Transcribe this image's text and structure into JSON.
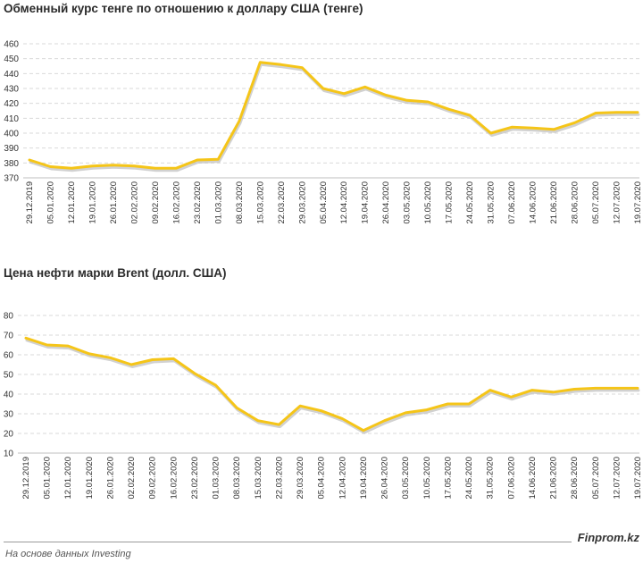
{
  "colors": {
    "line": "#F5C518",
    "line_shadow": "#bdbdbd",
    "grid": "#d9d9d9",
    "text": "#333333"
  },
  "chart_data": [
    {
      "type": "line",
      "title": "Обменный курс тенге по отношению к доллару США (тенге)",
      "ylim": [
        370,
        460
      ],
      "yticks": [
        370,
        380,
        390,
        400,
        410,
        420,
        430,
        440,
        450,
        460
      ],
      "grid": true,
      "categories": [
        "29.12.2019",
        "05.01.2020",
        "12.01.2020",
        "19.01.2020",
        "26.01.2020",
        "02.02.2020",
        "09.02.2020",
        "16.02.2020",
        "23.02.2020",
        "01.03.2020",
        "08.03.2020",
        "15.03.2020",
        "22.03.2020",
        "29.03.2020",
        "05.04.2020",
        "12.04.2020",
        "19.04.2020",
        "26.04.2020",
        "03.05.2020",
        "10.05.2020",
        "17.05.2020",
        "24.05.2020",
        "31.05.2020",
        "07.06.2020",
        "14.06.2020",
        "21.06.2020",
        "28.06.2020",
        "05.07.2020",
        "12.07.2020",
        "19.07.2020"
      ],
      "series": [
        {
          "values": [
            382,
            377.5,
            376.5,
            378,
            378.5,
            378,
            376.5,
            376.5,
            382,
            382.5,
            408,
            447.5,
            446,
            444,
            430,
            426.5,
            431,
            425.5,
            422,
            421,
            416,
            412,
            400,
            404,
            403.5,
            402.5,
            407,
            413.5,
            414,
            414
          ]
        }
      ]
    },
    {
      "type": "line",
      "title": "Цена нефти марки Brent (долл. США)",
      "ylim": [
        10,
        80
      ],
      "yticks": [
        10,
        20,
        30,
        40,
        50,
        60,
        70,
        80
      ],
      "grid": true,
      "categories": [
        "29.12.2019",
        "05.01.2020",
        "12.01.2020",
        "19.01.2020",
        "26.01.2020",
        "02.02.2020",
        "09.02.2020",
        "16.02.2020",
        "23.02.2020",
        "01.03.2020",
        "08.03.2020",
        "15.03.2020",
        "22.03.2020",
        "29.03.2020",
        "05.04.2020",
        "12.04.2020",
        "19.04.2020",
        "26.04.2020",
        "03.05.2020",
        "10.05.2020",
        "17.05.2020",
        "24.05.2020",
        "31.05.2020",
        "07.06.2020",
        "14.06.2020",
        "21.06.2020",
        "28.06.2020",
        "05.07.2020",
        "12.07.2020",
        "19.07.2020"
      ],
      "series": [
        {
          "values": [
            68.5,
            65,
            64.5,
            60.5,
            58.5,
            55,
            57.5,
            58,
            50.5,
            44.5,
            33,
            26.5,
            24.5,
            34,
            31.5,
            27.5,
            21.5,
            26.5,
            30.5,
            32,
            35,
            35,
            42,
            38.5,
            42,
            41,
            42.5,
            43,
            43,
            43
          ]
        }
      ]
    }
  ],
  "footer": {
    "source": "На основе данных Investing",
    "brand": "Finprom.kz"
  }
}
